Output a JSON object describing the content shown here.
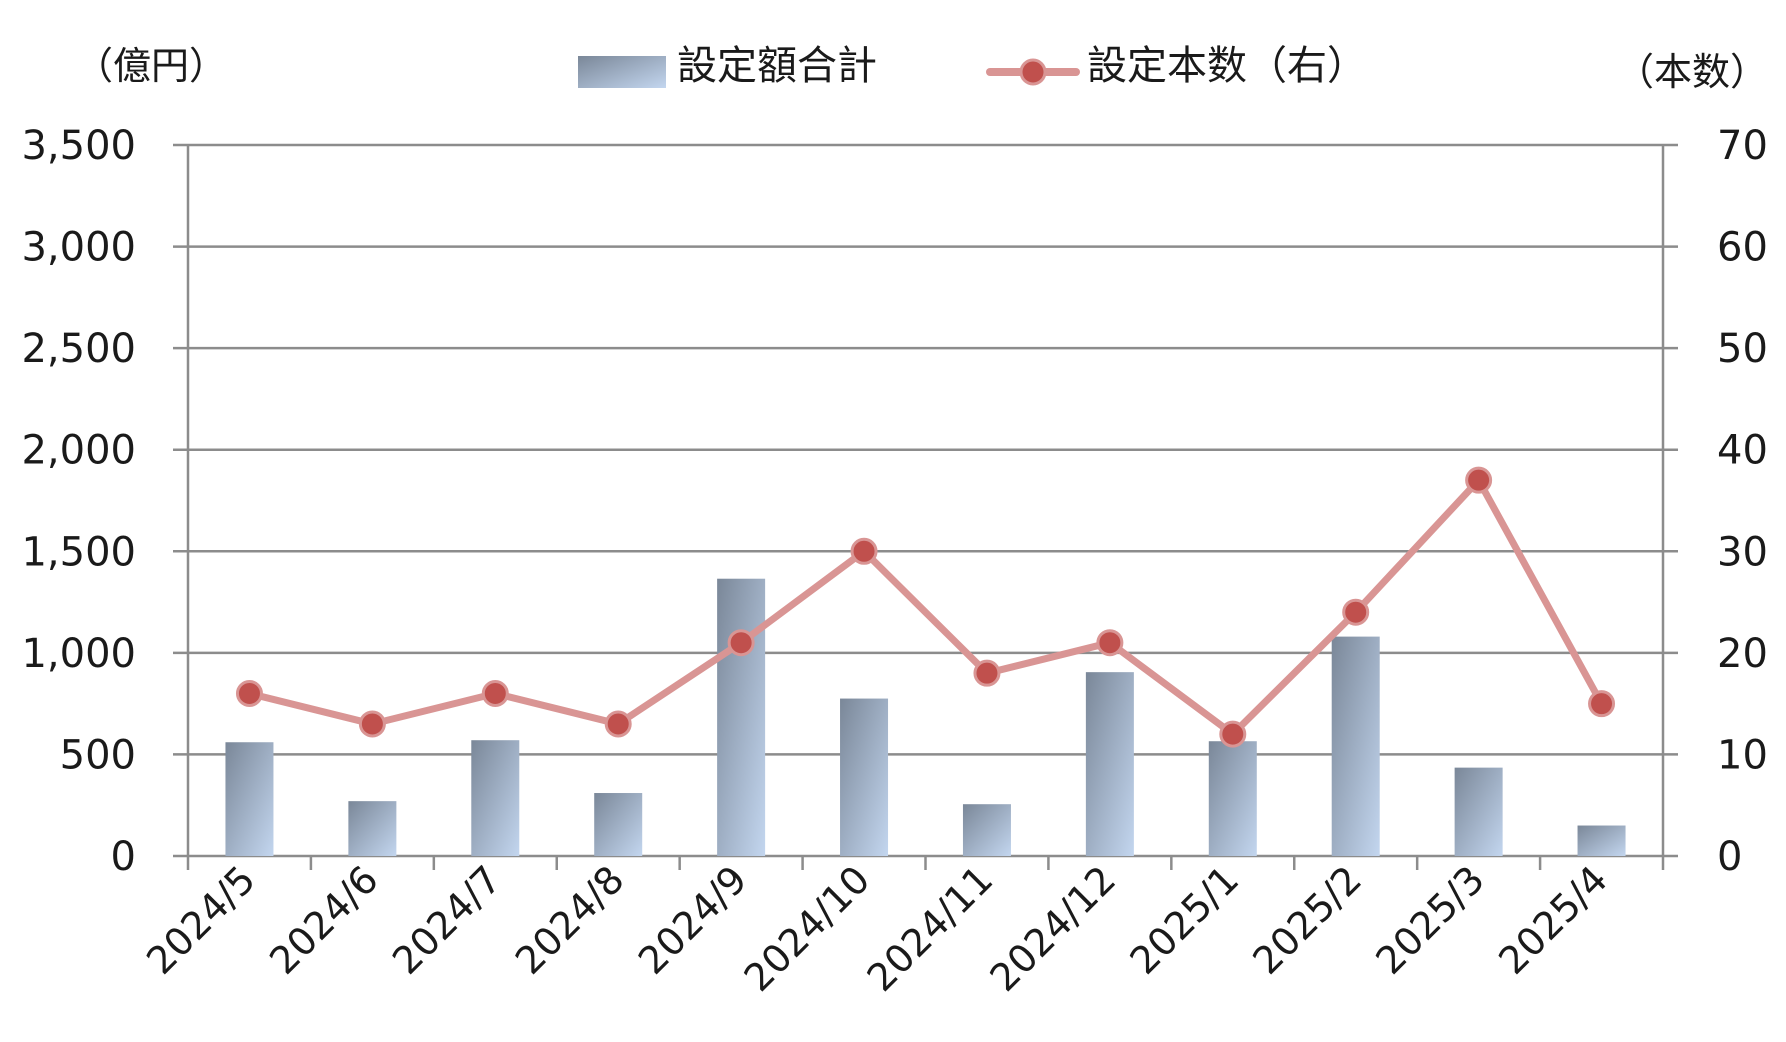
{
  "chart_data": {
    "type": "bar+line",
    "categories": [
      "2024/5",
      "2024/6",
      "2024/7",
      "2024/8",
      "2024/9",
      "2024/10",
      "2024/11",
      "2024/12",
      "2025/1",
      "2025/2",
      "2025/3",
      "2025/4"
    ],
    "series": [
      {
        "name": "設定額合計",
        "type": "bar",
        "axis": "left",
        "values": [
          560,
          270,
          570,
          310,
          1365,
          775,
          255,
          905,
          565,
          1080,
          435,
          150
        ],
        "color_top": "#7a8798",
        "color_bottom": "#c3d6ef"
      },
      {
        "name": "設定本数（右）",
        "type": "line",
        "axis": "right",
        "values": [
          16,
          13,
          16,
          13,
          21,
          30,
          18,
          21,
          12,
          24,
          37,
          15
        ],
        "line_color": "#d99594",
        "marker_color": "#c0504d"
      }
    ],
    "left_axis": {
      "unit_label": "（億円）",
      "min": 0,
      "max": 3500,
      "ticks": [
        0,
        500,
        1000,
        1500,
        2000,
        2500,
        3000,
        3500
      ],
      "tick_labels": [
        "0",
        "500",
        "1,000",
        "1,500",
        "2,000",
        "2,500",
        "3,000",
        "3,500"
      ]
    },
    "right_axis": {
      "unit_label": "（本数）",
      "min": 0,
      "max": 70,
      "ticks": [
        0,
        10,
        20,
        30,
        40,
        50,
        60,
        70
      ],
      "tick_labels": [
        "0",
        "10",
        "20",
        "30",
        "40",
        "50",
        "60",
        "70"
      ]
    },
    "grid": true,
    "legend_position": "top-center",
    "gridline_color": "#8c8c8c"
  }
}
